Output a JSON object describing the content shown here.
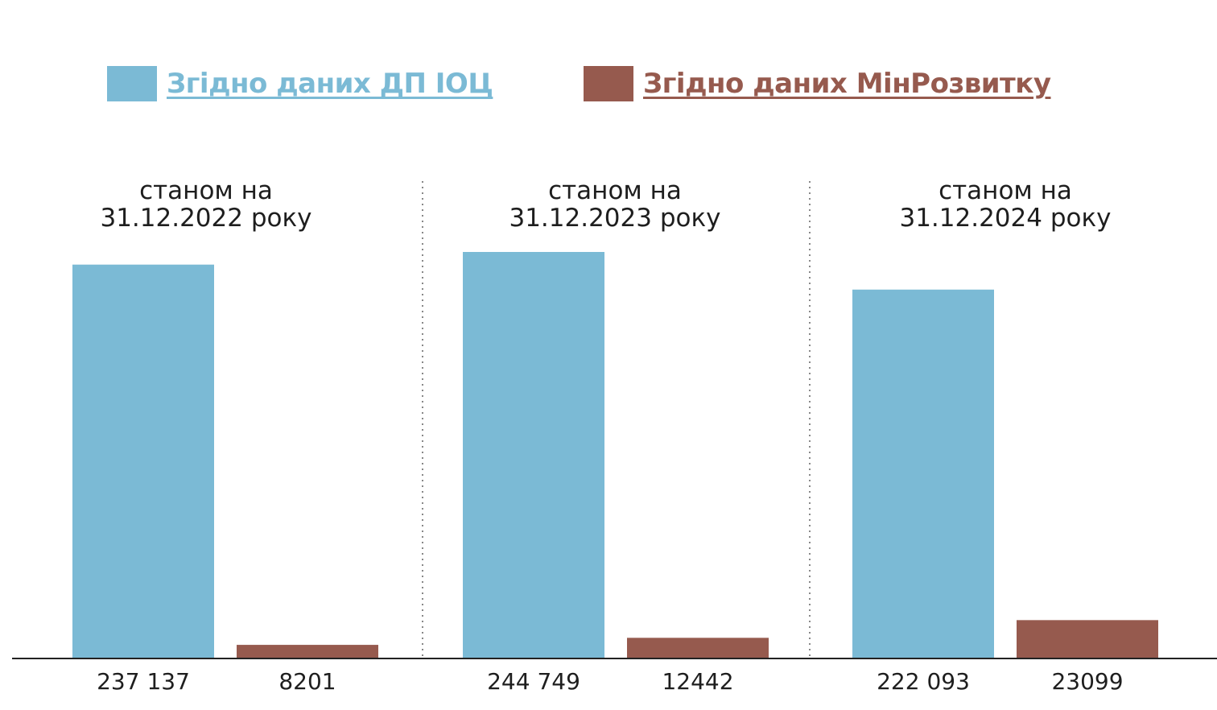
{
  "legend": {
    "series1_label": "Згідно даних ДП ІОЦ",
    "series2_label": "Згідно даних МінРозвитку"
  },
  "colors": {
    "series1": "#7bbad5",
    "series2": "#965a4e",
    "axis": "#222222",
    "divider": "#888888"
  },
  "chart_data": {
    "type": "bar",
    "categories": [
      "станом на 31.12.2022 року",
      "станом на 31.12.2023 року",
      "станом на 31.12.2024 року"
    ],
    "category_lines": [
      [
        "станом на",
        "31.12.2022 року"
      ],
      [
        "станом на",
        "31.12.2023 року"
      ],
      [
        "станом на",
        "31.12.2024 року"
      ]
    ],
    "series": [
      {
        "name": "Згідно даних ДП ІОЦ",
        "values": [
          237137,
          244749,
          222093
        ],
        "labels": [
          "237 137",
          "244 749",
          "222 093"
        ]
      },
      {
        "name": "Згідно даних МінРозвитку",
        "values": [
          8201,
          12442,
          23099
        ],
        "labels": [
          "8201",
          "12442",
          "23099"
        ]
      }
    ],
    "ylim": [
      0,
      250000
    ],
    "grid": false,
    "legend_position": "top"
  }
}
